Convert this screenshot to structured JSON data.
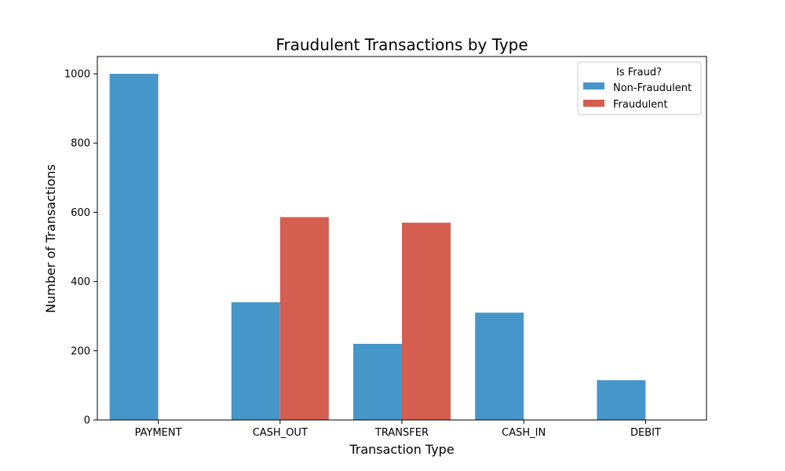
{
  "chart_data": {
    "type": "bar",
    "title": "Fraudulent Transactions by Type",
    "xlabel": "Transaction Type",
    "ylabel": "Number of Transactions",
    "categories": [
      "PAYMENT",
      "CASH_OUT",
      "TRANSFER",
      "CASH_IN",
      "DEBIT"
    ],
    "series": [
      {
        "name": "Non-Fraudulent",
        "color": "#4796c9",
        "values": [
          1000,
          340,
          220,
          310,
          115
        ]
      },
      {
        "name": "Fraudulent",
        "color": "#d45e50",
        "values": [
          0,
          586,
          570,
          0,
          0
        ]
      }
    ],
    "ylim": [
      0,
      1050
    ],
    "yticks": [
      0,
      200,
      400,
      600,
      800,
      1000
    ],
    "legend": {
      "title": "Is Fraud?",
      "position": "top-right"
    },
    "grid": false
  }
}
